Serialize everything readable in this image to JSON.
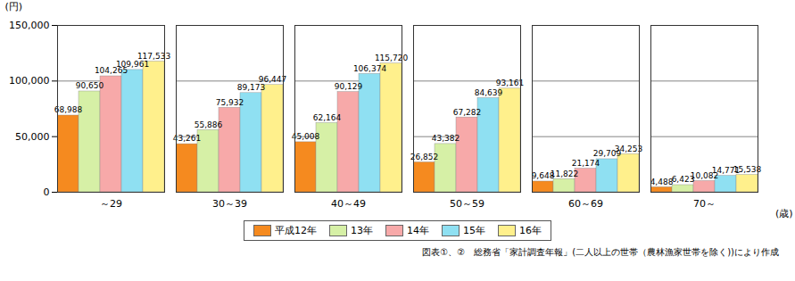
{
  "chart_data": {
    "type": "bar",
    "y_label": "(円)",
    "x_label": "(歳)",
    "source": "図表①、②　総務省「家計調査年報」(二人以上の世帯（農林漁家世帯を除く))により作成",
    "categories": [
      "～29",
      "30～39",
      "40～49",
      "50～59",
      "60～69",
      "70～"
    ],
    "series": [
      {
        "name": "平成12年",
        "color": "#f58a1f",
        "values": [
          68988,
          43261,
          45008,
          26852,
          9648,
          4488
        ],
        "value_labels": [
          "68,988",
          "43,261",
          "45,008",
          "26,852",
          "9,648",
          "4,488"
        ]
      },
      {
        "name": "13年",
        "color": "#d6f0a6",
        "values": [
          90650,
          55886,
          62164,
          43382,
          11822,
          6423
        ],
        "value_labels": [
          "90,650",
          "55,886",
          "62,164",
          "43,382",
          "11,822",
          "6,423"
        ]
      },
      {
        "name": "14年",
        "color": "#f7a9a9",
        "values": [
          104265,
          75932,
          90129,
          67282,
          21174,
          10082
        ],
        "value_labels": [
          "104,265",
          "75,932",
          "90,129",
          "67,282",
          "21,174",
          "10,082"
        ]
      },
      {
        "name": "15年",
        "color": "#8fe0f2",
        "values": [
          109961,
          89173,
          106374,
          84639,
          29709,
          14771
        ],
        "value_labels": [
          "109,961",
          "89,173",
          "106,374",
          "84,639",
          "29,709",
          "14,771"
        ]
      },
      {
        "name": "16年",
        "color": "#fff08c",
        "values": [
          117533,
          96447,
          115720,
          93161,
          34253,
          15538
        ],
        "value_labels": [
          "117,533",
          "96,447",
          "115,720",
          "93,161",
          "34,253",
          "15,538"
        ]
      }
    ],
    "ylim": [
      0,
      150000
    ],
    "yticks": [
      0,
      {
        "value": 50000,
        "label": "50,000"
      },
      {
        "value": 100000,
        "label": "100,000"
      },
      {
        "value": 150000,
        "label": "150,000"
      }
    ],
    "grid": true,
    "data_labels": true,
    "legend": "bottom"
  }
}
